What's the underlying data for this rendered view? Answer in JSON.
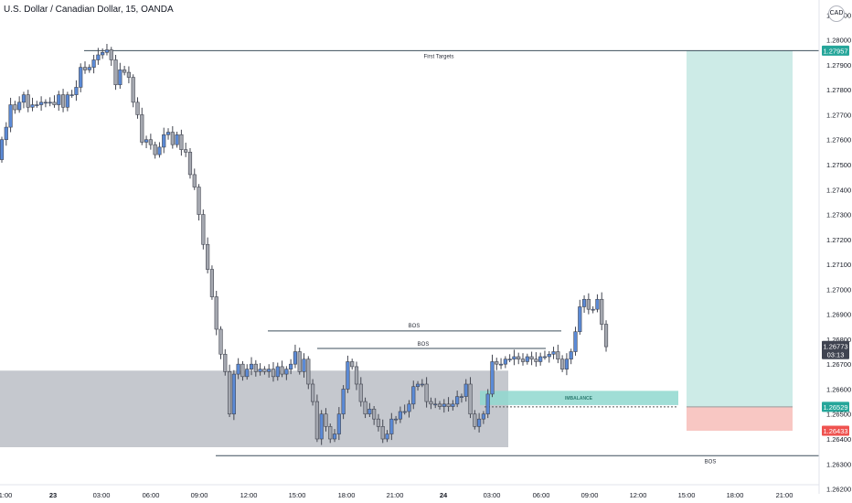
{
  "title": "U.S. Dollar / Canadian Dollar, 15, OANDA",
  "currency_badge": "CAD",
  "price_axis": {
    "ticks": [
      "1.28100",
      "1.28000",
      "1.27900",
      "1.27800",
      "1.27700",
      "1.27600",
      "1.27500",
      "1.27400",
      "1.27300",
      "1.27200",
      "1.27100",
      "1.27000",
      "1.26900",
      "1.26800",
      "1.26700",
      "1.26600",
      "1.26500",
      "1.26400",
      "1.26300",
      "1.26200"
    ],
    "labels": [
      {
        "text": "1.27957",
        "price": 1.27957,
        "color": "#26a69a"
      },
      {
        "text": "1.26773",
        "sub": "03:13",
        "price": 1.26773,
        "color": "#3f4350"
      },
      {
        "text": "1.26529",
        "price": 1.26529,
        "color": "#26a69a"
      },
      {
        "text": "1.26433",
        "price": 1.26433,
        "color": "#ef5350"
      }
    ]
  },
  "time_axis": {
    "ticks": [
      "1:00",
      "23",
      "03:00",
      "06:00",
      "09:00",
      "12:00",
      "15:00",
      "18:00",
      "21:00",
      "24",
      "03:00",
      "06:00",
      "09:00",
      "12:00",
      "15:00",
      "18:00",
      "21:00"
    ],
    "bold": [
      "23",
      "24"
    ]
  },
  "annotations": {
    "first_targets": "First Targets",
    "bos1": "BOS",
    "bos2": "BOS",
    "bos3": "BOS",
    "imbalance": "IMBALANCE"
  },
  "chart_data": {
    "type": "candlestick",
    "title": "U.S. Dollar / Canadian Dollar, 15, OANDA",
    "ylim": [
      1.2618,
      1.2816
    ],
    "price_levels": {
      "first_targets": 1.27957,
      "bos_upper": 1.26833,
      "bos_lower": 1.26763,
      "bos_bottom": 1.26333,
      "last_price": 1.26773,
      "target": 1.27957,
      "entry": 1.26529,
      "stop": 1.26433
    },
    "zones": {
      "range_box": [
        1.26367,
        1.26674
      ],
      "imbalance": [
        1.26536,
        1.26593
      ],
      "long_position_profit": [
        1.26529,
        1.27957
      ],
      "long_position_loss": [
        1.26433,
        1.26529
      ]
    },
    "closes": [
      1.276,
      1.2765,
      1.2774,
      1.2772,
      1.2775,
      1.2778,
      1.2773,
      1.2774,
      1.2774,
      1.2775,
      1.2775,
      1.2775,
      1.2774,
      1.2778,
      1.2773,
      1.2778,
      1.2778,
      1.2781,
      1.2789,
      1.2788,
      1.2789,
      1.2792,
      1.2794,
      1.2795,
      1.2796,
      1.2792,
      1.2782,
      1.2788,
      1.2787,
      1.2785,
      1.2775,
      1.277,
      1.2759,
      1.276,
      1.2758,
      1.2754,
      1.2757,
      1.2762,
      1.2763,
      1.2758,
      1.2762,
      1.2756,
      1.2755,
      1.2746,
      1.2741,
      1.273,
      1.2718,
      1.2708,
      1.2697,
      1.2684,
      1.2674,
      1.2667,
      1.265,
      1.2666,
      1.267,
      1.2665,
      1.2668,
      1.267,
      1.2667,
      1.2668,
      1.2667,
      1.2668,
      1.2665,
      1.2669,
      1.2666,
      1.2668,
      1.267,
      1.2675,
      1.2667,
      1.2672,
      1.2662,
      1.2655,
      1.264,
      1.265,
      1.2645,
      1.264,
      1.2642,
      1.265,
      1.266,
      1.2671,
      1.2669,
      1.2662,
      1.2655,
      1.265,
      1.2652,
      1.2648,
      1.2645,
      1.264,
      1.2642,
      1.2648,
      1.2648,
      1.2651,
      1.2651,
      1.2654,
      1.2661,
      1.2662,
      1.2662,
      1.2655,
      1.2654,
      1.2654,
      1.2653,
      1.2654,
      1.2653,
      1.2654,
      1.2657,
      1.2657,
      1.2662,
      1.265,
      1.2645,
      1.2648,
      1.265,
      1.2658,
      1.2671,
      1.267,
      1.267,
      1.2672,
      1.2672,
      1.2673,
      1.2672,
      1.2671,
      1.2673,
      1.2672,
      1.2671,
      1.2673,
      1.2673,
      1.2674,
      1.2675,
      1.2672,
      1.2668,
      1.2672,
      1.2675,
      1.2683,
      1.2693,
      1.2696,
      1.2692,
      1.2692,
      1.2696,
      1.2686,
      1.2677
    ],
    "open_first": 1.2752
  }
}
